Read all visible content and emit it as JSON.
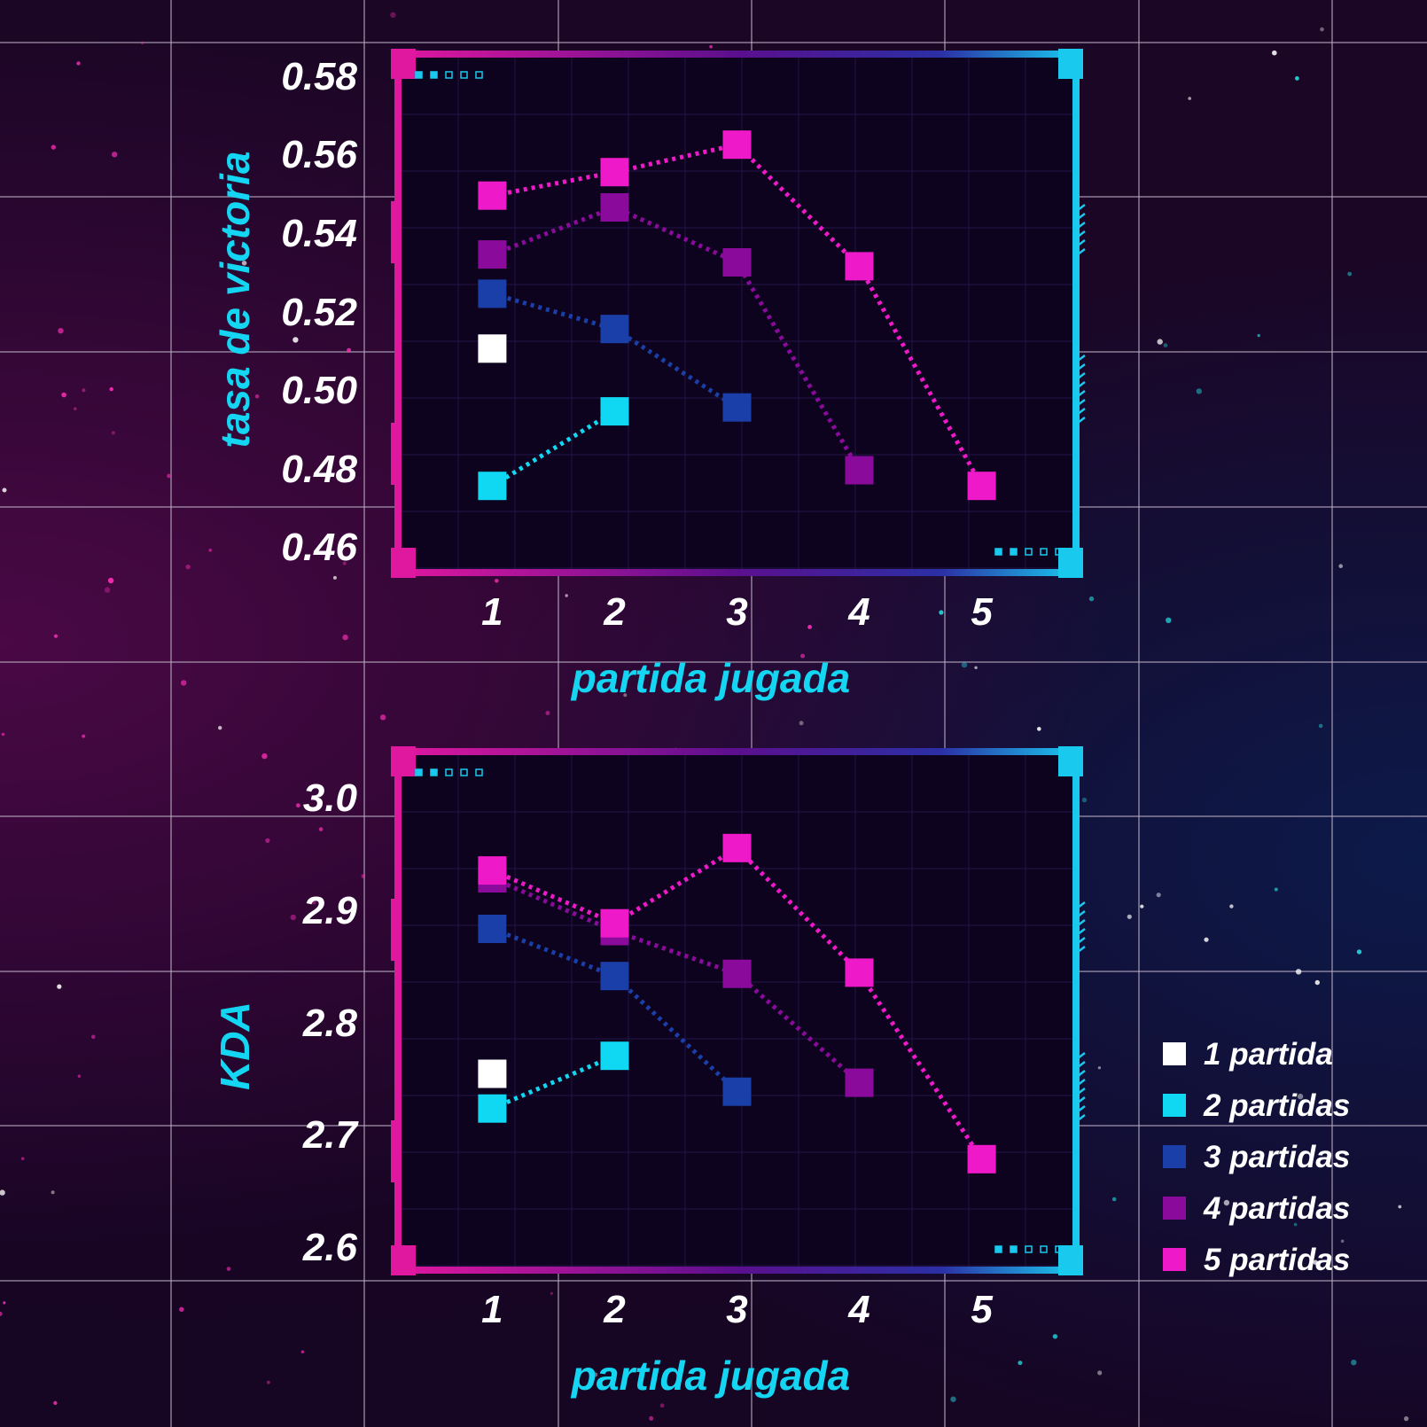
{
  "colors": {
    "1 partida": "#ffffff",
    "2 partidas": "#10d8f2",
    "3 partidas": "#1a3fa8",
    "4 partidas": "#8a0a9c",
    "5 partidas": "#ee19c8",
    "axis_title": "#14d6f2",
    "frame_magenta": "#e0179f",
    "frame_cyan": "#19c9ee"
  },
  "legend": [
    {
      "label": "1 partida",
      "color": "#ffffff"
    },
    {
      "label": "2 partidas",
      "color": "#10d8f2"
    },
    {
      "label": "3 partidas",
      "color": "#1a3fa8"
    },
    {
      "label": "4 partidas",
      "color": "#8a0a9c"
    },
    {
      "label": "5 partidas",
      "color": "#ee19c8"
    }
  ],
  "chart_data": [
    {
      "type": "line",
      "ylabel": "tasa de victoria",
      "xlabel": "partida jugada",
      "x_ticks": [
        "1",
        "2",
        "3",
        "4",
        "5"
      ],
      "y_ticks": [
        "0.46",
        "0.48",
        "0.50",
        "0.52",
        "0.54",
        "0.56",
        "0.58"
      ],
      "ylim": [
        0.453,
        0.587
      ],
      "xlim": [
        0.2,
        5.8
      ],
      "grid": false,
      "marker": "square",
      "line_style": "dotted",
      "series": [
        {
          "name": "1 partida",
          "color": "#ffffff",
          "points": [
            [
              1,
              0.511
            ]
          ]
        },
        {
          "name": "2 partidas",
          "color": "#10d8f2",
          "points": [
            [
              1,
              0.476
            ],
            [
              2,
              0.495
            ]
          ]
        },
        {
          "name": "3 partidas",
          "color": "#1a3fa8",
          "points": [
            [
              1,
              0.525
            ],
            [
              2,
              0.516
            ],
            [
              3,
              0.496
            ]
          ]
        },
        {
          "name": "4 partidas",
          "color": "#8a0a9c",
          "points": [
            [
              1,
              0.535
            ],
            [
              2,
              0.547
            ],
            [
              3,
              0.533
            ],
            [
              4,
              0.48
            ]
          ]
        },
        {
          "name": "5 partidas",
          "color": "#ee19c8",
          "points": [
            [
              1,
              0.55
            ],
            [
              2,
              0.556
            ],
            [
              3,
              0.563
            ],
            [
              4,
              0.532
            ],
            [
              5,
              0.476
            ]
          ]
        }
      ]
    },
    {
      "type": "line",
      "ylabel": "KDA",
      "xlabel": "partida jugada",
      "x_ticks": [
        "1",
        "2",
        "3",
        "4",
        "5"
      ],
      "y_ticks": [
        "2.6",
        "2.7",
        "2.8",
        "2.9",
        "3.0"
      ],
      "ylim": [
        2.578,
        3.046
      ],
      "xlim": [
        0.2,
        5.8
      ],
      "grid": false,
      "marker": "square",
      "line_style": "dotted",
      "series": [
        {
          "name": "1 partida",
          "color": "#ffffff",
          "points": [
            [
              1,
              2.756
            ]
          ]
        },
        {
          "name": "2 partidas",
          "color": "#10d8f2",
          "points": [
            [
              1,
              2.725
            ],
            [
              2,
              2.772
            ]
          ]
        },
        {
          "name": "3 partidas",
          "color": "#1a3fa8",
          "points": [
            [
              1,
              2.885
            ],
            [
              2,
              2.843
            ],
            [
              3,
              2.74
            ]
          ]
        },
        {
          "name": "4 partidas",
          "color": "#8a0a9c",
          "points": [
            [
              1,
              2.93
            ],
            [
              2,
              2.883
            ],
            [
              3,
              2.845
            ],
            [
              4,
              2.748
            ]
          ]
        },
        {
          "name": "5 partidas",
          "color": "#ee19c8",
          "points": [
            [
              1,
              2.937
            ],
            [
              2,
              2.89
            ],
            [
              3,
              2.957
            ],
            [
              4,
              2.846
            ],
            [
              5,
              2.68
            ]
          ]
        }
      ]
    }
  ]
}
